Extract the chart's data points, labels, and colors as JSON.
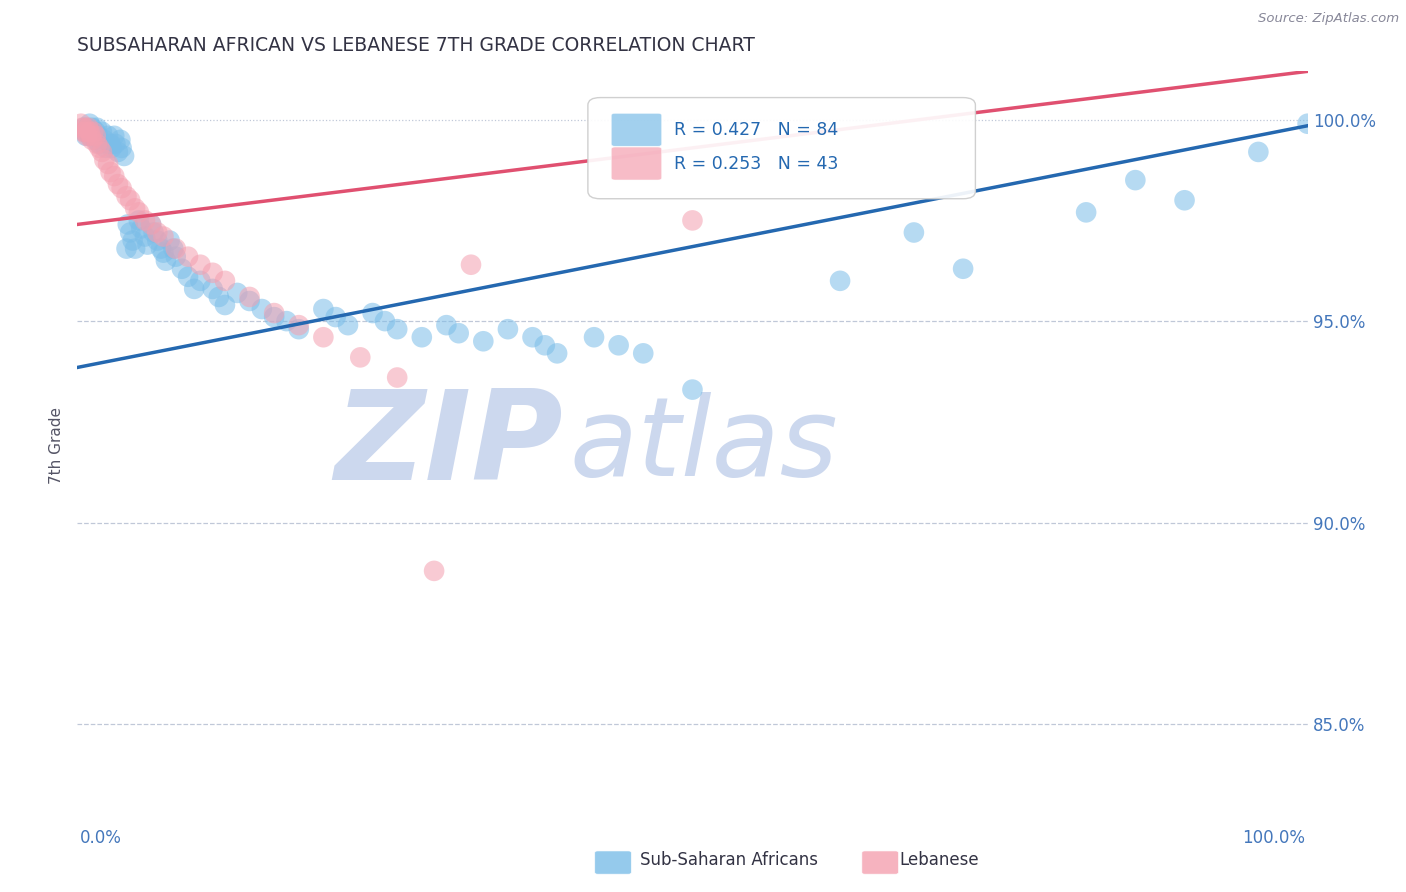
{
  "title": "SUBSAHARAN AFRICAN VS LEBANESE 7TH GRADE CORRELATION CHART",
  "source": "Source: ZipAtlas.com",
  "ylabel": "7th Grade",
  "ytick_labels": [
    "85.0%",
    "90.0%",
    "95.0%",
    "100.0%"
  ],
  "ytick_values": [
    0.85,
    0.9,
    0.95,
    1.0
  ],
  "xlim": [
    0.0,
    1.0
  ],
  "ylim": [
    0.826,
    1.012
  ],
  "legend_blue": "R = 0.427   N = 84",
  "legend_pink": "R = 0.253   N = 43",
  "blue_color": "#7bbde8",
  "pink_color": "#f4a0b0",
  "line_blue": "#2468b0",
  "line_pink": "#e05070",
  "watermark_zip": "ZIP",
  "watermark_atlas": "atlas",
  "watermark_color": "#ccd8ee",
  "blue_trend_x": [
    0.0,
    1.0
  ],
  "blue_trend_y": [
    0.9385,
    0.9985
  ],
  "pink_trend_x": [
    0.0,
    1.0
  ],
  "pink_trend_y": [
    0.974,
    1.012
  ],
  "blue_x": [
    0.005,
    0.006,
    0.007,
    0.008,
    0.009,
    0.01,
    0.01,
    0.011,
    0.012,
    0.013,
    0.015,
    0.015,
    0.016,
    0.017,
    0.018,
    0.02,
    0.022,
    0.023,
    0.025,
    0.027,
    0.028,
    0.03,
    0.031,
    0.033,
    0.035,
    0.036,
    0.038,
    0.04,
    0.041,
    0.043,
    0.045,
    0.047,
    0.05,
    0.052,
    0.055,
    0.057,
    0.06,
    0.062,
    0.065,
    0.068,
    0.07,
    0.072,
    0.075,
    0.078,
    0.08,
    0.085,
    0.09,
    0.095,
    0.1,
    0.11,
    0.115,
    0.12,
    0.13,
    0.14,
    0.15,
    0.16,
    0.17,
    0.18,
    0.2,
    0.21,
    0.22,
    0.24,
    0.25,
    0.26,
    0.28,
    0.3,
    0.31,
    0.33,
    0.35,
    0.37,
    0.38,
    0.39,
    0.42,
    0.44,
    0.46,
    0.5,
    0.62,
    0.68,
    0.72,
    0.82,
    0.86,
    0.9,
    0.96,
    1.0
  ],
  "blue_y": [
    0.998,
    0.997,
    0.996,
    0.998,
    0.997,
    0.999,
    0.996,
    0.997,
    0.998,
    0.996,
    0.997,
    0.995,
    0.998,
    0.996,
    0.994,
    0.997,
    0.995,
    0.993,
    0.996,
    0.994,
    0.993,
    0.996,
    0.994,
    0.992,
    0.995,
    0.993,
    0.991,
    0.968,
    0.974,
    0.972,
    0.97,
    0.968,
    0.975,
    0.973,
    0.971,
    0.969,
    0.974,
    0.972,
    0.97,
    0.968,
    0.967,
    0.965,
    0.97,
    0.968,
    0.966,
    0.963,
    0.961,
    0.958,
    0.96,
    0.958,
    0.956,
    0.954,
    0.957,
    0.955,
    0.953,
    0.951,
    0.95,
    0.948,
    0.953,
    0.951,
    0.949,
    0.952,
    0.95,
    0.948,
    0.946,
    0.949,
    0.947,
    0.945,
    0.948,
    0.946,
    0.944,
    0.942,
    0.946,
    0.944,
    0.942,
    0.933,
    0.96,
    0.972,
    0.963,
    0.977,
    0.985,
    0.98,
    0.992,
    0.999
  ],
  "pink_x": [
    0.003,
    0.004,
    0.005,
    0.006,
    0.007,
    0.008,
    0.009,
    0.01,
    0.011,
    0.012,
    0.013,
    0.015,
    0.016,
    0.018,
    0.02,
    0.022,
    0.025,
    0.027,
    0.03,
    0.033,
    0.036,
    0.04,
    0.043,
    0.047,
    0.05,
    0.055,
    0.06,
    0.065,
    0.07,
    0.08,
    0.09,
    0.1,
    0.11,
    0.12,
    0.14,
    0.16,
    0.18,
    0.2,
    0.23,
    0.26,
    0.29,
    0.32,
    0.5
  ],
  "pink_y": [
    0.999,
    0.998,
    0.997,
    0.998,
    0.997,
    0.996,
    0.998,
    0.997,
    0.996,
    0.995,
    0.997,
    0.996,
    0.994,
    0.993,
    0.992,
    0.99,
    0.989,
    0.987,
    0.986,
    0.984,
    0.983,
    0.981,
    0.98,
    0.978,
    0.977,
    0.975,
    0.974,
    0.972,
    0.971,
    0.968,
    0.966,
    0.964,
    0.962,
    0.96,
    0.956,
    0.952,
    0.949,
    0.946,
    0.941,
    0.936,
    0.888,
    0.964,
    0.975
  ]
}
